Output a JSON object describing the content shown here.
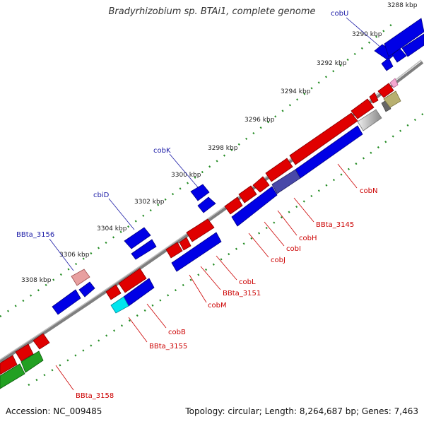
{
  "title": "Bradyrhizobium sp. BTAi1, complete genome",
  "footer": {
    "accession": "Accession: NC_009485",
    "summary": "Topology: circular; Length: 8,264,687 bp; Genes: 7,463"
  },
  "kbp_labels": [
    "3288 kbp",
    "3290 kbp",
    "3292 kbp",
    "3294 kbp",
    "3296 kbp",
    "3298 kbp",
    "3300 kbp",
    "3302 kbp",
    "3304 kbp",
    "3306 kbp",
    "3308 kbp"
  ],
  "genes_outer": [
    "cobU",
    "cobK",
    "cbiD",
    "BBta_3156"
  ],
  "genes_inner": [
    "cobN",
    "BBta_3145",
    "cobH",
    "cobI",
    "cobJ",
    "cobL",
    "BBta_3151",
    "cobM",
    "cobB",
    "BBta_3155",
    "BBta_3158"
  ],
  "colors": {
    "forward_cds": "#e00000",
    "reverse_cds": "#0000e0",
    "backbone": "#888888",
    "tick": "#228b22",
    "label_outer": "#1a1aa6",
    "label_inner": "#cc0000"
  }
}
